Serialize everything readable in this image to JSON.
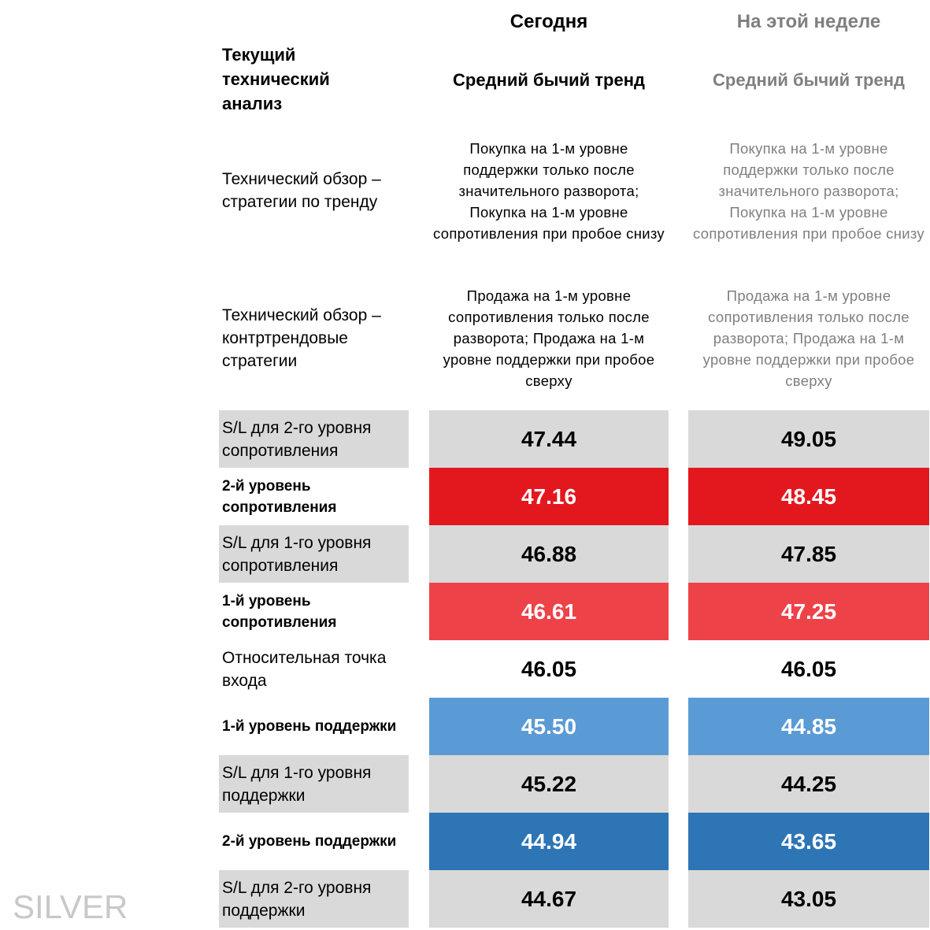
{
  "header": {
    "columns": [
      "Сегодня",
      "На этой неделе"
    ]
  },
  "analysis": {
    "label": "Текущий технический анализ",
    "values": [
      "Средний бычий тренд",
      "Средний бычий тренд"
    ]
  },
  "strategies": [
    {
      "label": "Технический обзор – стратегии по тренду",
      "values": [
        "Покупка на 1-м уровне поддержки только после значительного разворота; Покупка на 1-м уровне сопротивления при пробое снизу",
        "Покупка на 1-м уровне поддержки только после значительного разворота; Покупка на 1-м уровне сопротивления при пробое снизу"
      ]
    },
    {
      "label": "Технический обзор – контртрендовые стратегии",
      "values": [
        "Продажа на 1-м уровне сопротивления только после разворота; Продажа на 1-м уровне поддержки при пробое сверху",
        "Продажа на 1-м уровне сопротивления только после разворота; Продажа на 1-м уровне поддержки при пробое сверху"
      ]
    }
  ],
  "levels": [
    {
      "label": "S/L для 2-го уровня сопротивления",
      "values": [
        "47.44",
        "49.05"
      ]
    },
    {
      "label": "2-й уровень сопротивления",
      "values": [
        "47.16",
        "48.45"
      ]
    },
    {
      "label": "S/L для 1-го уровня сопротивления",
      "values": [
        "46.88",
        "47.85"
      ]
    },
    {
      "label": "1-й уровень сопротивления",
      "values": [
        "46.61",
        "47.25"
      ]
    },
    {
      "label": "Относительная точка входа",
      "values": [
        "46.05",
        "46.05"
      ]
    },
    {
      "label": "1-й уровень поддержки",
      "values": [
        "45.50",
        "44.85"
      ]
    },
    {
      "label": "S/L для 1-го уровня поддержки",
      "values": [
        "45.22",
        "44.25"
      ]
    },
    {
      "label": "2-й уровень поддержки",
      "values": [
        "44.94",
        "43.65"
      ]
    },
    {
      "label": "S/L для 2-го уровня поддержки",
      "values": [
        "44.67",
        "43.05"
      ]
    }
  ],
  "watermark": "SILVER"
}
